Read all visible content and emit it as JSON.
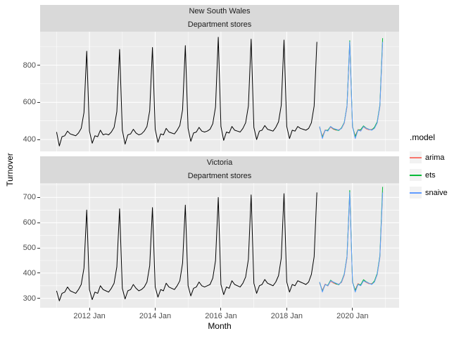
{
  "axis": {
    "x_title": "Month",
    "y_title": "Turnover"
  },
  "legend_title": ".model",
  "chart_data": {
    "type": "line",
    "title": "",
    "xlabel": "Month",
    "ylabel": "Turnover",
    "legend_title": ".model",
    "legend_position": "right",
    "grid": true,
    "panel_bg": "#EBEBEB",
    "strip_bg": "#D9D9D9",
    "historical_color": "#000000",
    "x_start": "2011 Jan",
    "x_range": [
      -6,
      125
    ],
    "x_ticks": [
      {
        "index": 12,
        "label": "2012 Jan"
      },
      {
        "index": 36,
        "label": "2014 Jan"
      },
      {
        "index": 60,
        "label": "2016 Jan"
      },
      {
        "index": 84,
        "label": "2018 Jan"
      },
      {
        "index": 108,
        "label": "2020 Jan"
      }
    ],
    "x_minor": [
      0,
      24,
      48,
      72,
      96,
      120
    ],
    "models": [
      {
        "name": "arima",
        "color": "#F8766D"
      },
      {
        "name": "ets",
        "color": "#00BA38"
      },
      {
        "name": "snaive",
        "color": "#619CFF"
      }
    ],
    "facets": [
      {
        "region": "New South Wales",
        "industry": "Department stores",
        "y_ticks": [
          400,
          600,
          800
        ],
        "y_minor": [
          300,
          500,
          700,
          900
        ],
        "y_range": [
          336,
          980
        ],
        "forecast_start_index": 96,
        "historical": [
          440,
          365,
          415,
          420,
          445,
          430,
          425,
          420,
          435,
          460,
          545,
          875,
          445,
          380,
          420,
          415,
          450,
          425,
          430,
          425,
          440,
          465,
          550,
          885,
          450,
          375,
          425,
          430,
          455,
          435,
          425,
          430,
          445,
          470,
          555,
          895,
          455,
          385,
          430,
          425,
          460,
          440,
          435,
          430,
          450,
          475,
          560,
          905,
          460,
          390,
          435,
          440,
          465,
          445,
          440,
          445,
          455,
          485,
          575,
          950,
          470,
          395,
          440,
          435,
          470,
          450,
          445,
          440,
          460,
          490,
          580,
          940,
          465,
          400,
          445,
          450,
          475,
          455,
          450,
          445,
          465,
          495,
          585,
          935,
          470,
          405,
          450,
          445,
          470,
          460,
          455,
          450,
          460,
          490,
          580,
          925
        ],
        "forecasts": {
          "arima": [
            463,
            418,
            452,
            447,
            466,
            455,
            450,
            453,
            459,
            487,
            575,
            920,
            465,
            420,
            454,
            449,
            468,
            457,
            452,
            455,
            461,
            489,
            577,
            928
          ],
          "ets": [
            468,
            412,
            448,
            450,
            470,
            458,
            452,
            448,
            463,
            492,
            582,
            932,
            471,
            415,
            451,
            453,
            473,
            461,
            455,
            451,
            466,
            495,
            585,
            945
          ],
          "snaive": [
            470,
            405,
            450,
            445,
            470,
            460,
            455,
            450,
            460,
            490,
            580,
            925,
            470,
            405,
            450,
            445,
            470,
            460,
            455,
            450,
            460,
            490,
            580,
            925
          ]
        }
      },
      {
        "region": "Victoria",
        "industry": "Department stores",
        "y_ticks": [
          300,
          400,
          500,
          600,
          700
        ],
        "y_minor": [
          250,
          350,
          450,
          550,
          650,
          750
        ],
        "y_range": [
          263,
          757
        ],
        "forecast_start_index": 96,
        "historical": [
          330,
          290,
          320,
          325,
          345,
          330,
          325,
          320,
          335,
          355,
          420,
          650,
          335,
          295,
          325,
          320,
          350,
          335,
          330,
          325,
          340,
          360,
          425,
          655,
          340,
          298,
          330,
          335,
          355,
          340,
          330,
          335,
          345,
          365,
          430,
          660,
          345,
          305,
          335,
          330,
          360,
          345,
          340,
          335,
          350,
          370,
          440,
          670,
          350,
          310,
          340,
          345,
          365,
          350,
          345,
          350,
          355,
          380,
          450,
          700,
          355,
          315,
          345,
          340,
          370,
          355,
          350,
          345,
          360,
          385,
          455,
          710,
          360,
          320,
          350,
          355,
          375,
          360,
          355,
          350,
          365,
          390,
          460,
          715,
          365,
          325,
          355,
          350,
          370,
          365,
          360,
          355,
          365,
          395,
          465,
          720
        ],
        "forecasts": {
          "arima": [
            360,
            332,
            357,
            349,
            368,
            361,
            356,
            357,
            363,
            392,
            460,
            715,
            362,
            334,
            359,
            351,
            370,
            363,
            358,
            359,
            365,
            394,
            462,
            722
          ],
          "ets": [
            364,
            328,
            354,
            352,
            372,
            364,
            358,
            354,
            367,
            397,
            467,
            728,
            366,
            331,
            356,
            354,
            374,
            366,
            360,
            356,
            369,
            399,
            469,
            742
          ],
          "snaive": [
            365,
            325,
            355,
            350,
            370,
            365,
            360,
            355,
            365,
            395,
            465,
            720,
            365,
            325,
            355,
            350,
            370,
            365,
            360,
            355,
            365,
            395,
            465,
            720
          ]
        }
      }
    ]
  }
}
